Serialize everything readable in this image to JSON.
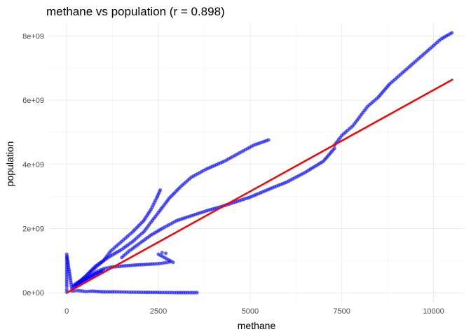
{
  "chart_data": {
    "type": "scatter",
    "title": "methane vs population (r = 0.898)",
    "xlabel": "methane",
    "ylabel": "population",
    "xlim": [
      -500,
      10850
    ],
    "ylim": [
      -300000000,
      8400000000
    ],
    "x_ticks": [
      0,
      2500,
      5000,
      7500,
      10000
    ],
    "x_tick_labels": [
      "0",
      "2500",
      "5000",
      "7500",
      "10000"
    ],
    "y_ticks": [
      0,
      2000000000,
      4000000000,
      6000000000,
      8000000000
    ],
    "y_tick_labels": [
      "0e+00",
      "2e+09",
      "4e+09",
      "6e+09",
      "8e+09"
    ],
    "grid": true,
    "point_color": "#0000ff",
    "point_opacity": 0.6,
    "trend_color": "#ff0000",
    "trend_line": {
      "x": [
        0,
        10530
      ],
      "y": [
        0,
        6650000000
      ]
    },
    "points": [
      [
        0,
        20000000
      ],
      [
        0,
        100000000
      ],
      [
        0,
        200000000
      ],
      [
        0,
        350000000
      ],
      [
        0,
        500000000
      ],
      [
        0,
        650000000
      ],
      [
        0,
        800000000
      ],
      [
        0,
        950000000
      ],
      [
        0,
        1100000000
      ],
      [
        0,
        1200000000
      ],
      [
        150,
        50000000
      ],
      [
        300,
        70000000
      ],
      [
        500,
        40000000
      ],
      [
        700,
        50000000
      ],
      [
        1000,
        30000000
      ],
      [
        1300,
        30000000
      ],
      [
        1700,
        20000000
      ],
      [
        2100,
        15000000
      ],
      [
        2600,
        10000000
      ],
      [
        3000,
        5000000
      ],
      [
        3300,
        5000000
      ],
      [
        3550,
        5000000
      ],
      [
        300,
        300000000
      ],
      [
        600,
        500000000
      ],
      [
        800,
        650000000
      ],
      [
        1000,
        750000000
      ],
      [
        1200,
        800000000
      ],
      [
        1500,
        830000000
      ],
      [
        1800,
        860000000
      ],
      [
        2100,
        880000000
      ],
      [
        2400,
        900000000
      ],
      [
        2600,
        920000000
      ],
      [
        2800,
        960000000
      ],
      [
        2900,
        950000000
      ],
      [
        2500,
        1200000000
      ],
      [
        2600,
        1250000000
      ],
      [
        2700,
        1230000000
      ],
      [
        200,
        200000000
      ],
      [
        400,
        350000000
      ],
      [
        600,
        480000000
      ],
      [
        800,
        600000000
      ],
      [
        1000,
        700000000
      ],
      [
        200,
        200000000
      ],
      [
        500,
        500000000
      ],
      [
        800,
        850000000
      ],
      [
        1000,
        1000000000
      ],
      [
        1200,
        1300000000
      ],
      [
        1500,
        1600000000
      ],
      [
        1800,
        1900000000
      ],
      [
        2100,
        2250000000
      ],
      [
        2300,
        2600000000
      ],
      [
        2450,
        2950000000
      ],
      [
        2550,
        3200000000
      ],
      [
        200,
        250000000
      ],
      [
        400,
        400000000
      ],
      [
        600,
        600000000
      ],
      [
        800,
        800000000
      ],
      [
        1000,
        1000000000
      ],
      [
        1200,
        1150000000
      ],
      [
        1500,
        1350000000
      ],
      [
        1800,
        1600000000
      ],
      [
        2100,
        1900000000
      ],
      [
        2300,
        2200000000
      ],
      [
        2500,
        2500000000
      ],
      [
        2800,
        2950000000
      ],
      [
        3100,
        3300000000
      ],
      [
        3400,
        3600000000
      ],
      [
        3800,
        3850000000
      ],
      [
        4300,
        4100000000
      ],
      [
        4700,
        4350000000
      ],
      [
        5100,
        4600000000
      ],
      [
        5500,
        4760000000
      ],
      [
        1500,
        1100000000
      ],
      [
        1700,
        1300000000
      ],
      [
        2000,
        1550000000
      ],
      [
        2300,
        1800000000
      ],
      [
        2600,
        2000000000
      ],
      [
        3000,
        2250000000
      ],
      [
        3400,
        2400000000
      ],
      [
        3800,
        2550000000
      ],
      [
        4200,
        2680000000
      ],
      [
        4600,
        2830000000
      ],
      [
        5000,
        2980000000
      ],
      [
        5500,
        3220000000
      ],
      [
        6000,
        3450000000
      ],
      [
        6500,
        3750000000
      ],
      [
        7000,
        4100000000
      ],
      [
        7300,
        4500000000
      ],
      [
        7300,
        4600000000
      ],
      [
        7500,
        4900000000
      ],
      [
        7800,
        5200000000
      ],
      [
        8000,
        5500000000
      ],
      [
        8200,
        5800000000
      ],
      [
        8500,
        6100000000
      ],
      [
        8800,
        6500000000
      ],
      [
        9100,
        6800000000
      ],
      [
        9400,
        7100000000
      ],
      [
        9700,
        7400000000
      ],
      [
        10000,
        7700000000
      ],
      [
        10200,
        7900000000
      ],
      [
        10500,
        8100000000
      ]
    ]
  }
}
